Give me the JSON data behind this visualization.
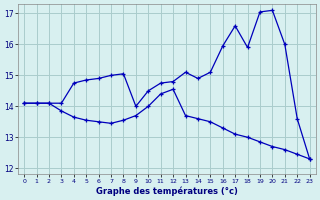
{
  "xlabel": "Graphe des températures (°c)",
  "background_color": "#d8f0f0",
  "grid_color": "#aacccc",
  "line_color": "#0000bb",
  "xlim": [
    -0.5,
    23.5
  ],
  "ylim": [
    11.8,
    17.3
  ],
  "yticks": [
    12,
    13,
    14,
    15,
    16,
    17
  ],
  "xticks": [
    0,
    1,
    2,
    3,
    4,
    5,
    6,
    7,
    8,
    9,
    10,
    11,
    12,
    13,
    14,
    15,
    16,
    17,
    18,
    19,
    20,
    21,
    22,
    23
  ],
  "upper_x": [
    0,
    1,
    2,
    3,
    4,
    5,
    6,
    7,
    8,
    9,
    10,
    11,
    12,
    13,
    14,
    15,
    16,
    17,
    18,
    19,
    20,
    21,
    22,
    23
  ],
  "upper_y": [
    14.1,
    14.1,
    14.1,
    14.1,
    14.75,
    14.85,
    14.9,
    15.0,
    15.05,
    14.0,
    14.5,
    14.75,
    14.8,
    15.1,
    14.9,
    15.1,
    15.95,
    16.6,
    15.9,
    17.05,
    17.1,
    16.0,
    13.6,
    12.3
  ],
  "lower_x": [
    0,
    1,
    2,
    3,
    4,
    5,
    6,
    7,
    8,
    9,
    10,
    11,
    12,
    13,
    14,
    15,
    16,
    17,
    18,
    19,
    20,
    21,
    22,
    23
  ],
  "lower_y": [
    14.1,
    14.1,
    14.1,
    13.85,
    13.65,
    13.55,
    13.5,
    13.45,
    13.55,
    13.7,
    14.0,
    14.4,
    14.55,
    13.7,
    13.6,
    13.5,
    13.3,
    13.1,
    13.0,
    12.85,
    12.7,
    12.6,
    12.45,
    12.3
  ],
  "marker": "+"
}
